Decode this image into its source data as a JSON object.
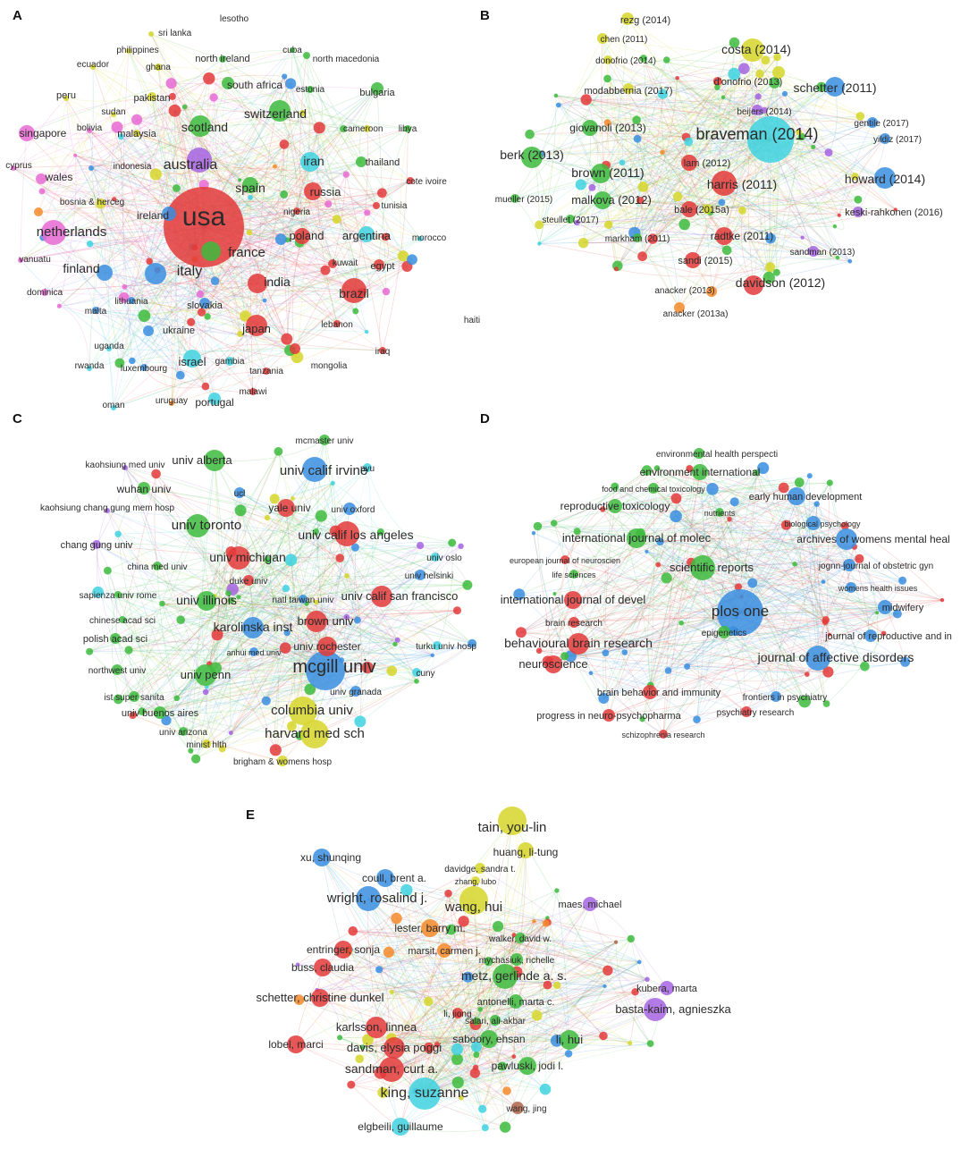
{
  "figure": {
    "panels": [
      {
        "letter": "A",
        "labels": [
          {
            "text": "lesotho",
            "color": "#ffffff"
          },
          {
            "text": "sri lanka",
            "color": "#d6d62a"
          },
          {
            "text": "philippines",
            "color": "#d6d62a"
          },
          {
            "text": "cuba",
            "color": "#3dbb3d"
          },
          {
            "text": "ecuador",
            "color": "#d6d62a"
          },
          {
            "text": "ghana",
            "color": "#d6d62a"
          },
          {
            "text": "north ireland",
            "color": "#3dbb3d"
          },
          {
            "text": "north macedonia",
            "color": "#3dbb3d"
          },
          {
            "text": "peru",
            "color": "#d6d62a"
          },
          {
            "text": "pakistan",
            "color": "#d6d62a"
          },
          {
            "text": "south africa",
            "color": "#3dbb3d"
          },
          {
            "text": "estonia",
            "color": "#3dbb3d"
          },
          {
            "text": "bulgaria",
            "color": "#3dbb3d"
          },
          {
            "text": "sudan",
            "color": "#d6d62a"
          },
          {
            "text": "singapore",
            "color": "#e86ad4"
          },
          {
            "text": "bolivia",
            "color": "#e86ad4"
          },
          {
            "text": "malaysia",
            "color": "#d6d62a"
          },
          {
            "text": "scotland",
            "color": "#3dbb3d"
          },
          {
            "text": "switzerland",
            "color": "#3dbb3d"
          },
          {
            "text": "cameroon",
            "color": "#3dbb3d"
          },
          {
            "text": "libya",
            "color": "#3dbb3d"
          },
          {
            "text": "cyprus",
            "color": "#e86ad4"
          },
          {
            "text": "indonesia",
            "color": "#3a8ee0"
          },
          {
            "text": "australia",
            "color": "#a564e0"
          },
          {
            "text": "iran",
            "color": "#3fd2e0"
          },
          {
            "text": "thailand",
            "color": "#3dbb3d"
          },
          {
            "text": "wales",
            "color": "#e86ad4"
          },
          {
            "text": "cote ivoire",
            "color": "#e33a3a"
          },
          {
            "text": "bosnia & herceg",
            "color": "#f38a2a"
          },
          {
            "text": "spain",
            "color": "#3dbb3d"
          },
          {
            "text": "russia",
            "color": "#e33a3a"
          },
          {
            "text": "usa",
            "color": "#e33a3a"
          },
          {
            "text": "ireland",
            "color": "#3a8ee0"
          },
          {
            "text": "nigeria",
            "color": "#e33a3a"
          },
          {
            "text": "tunisia",
            "color": "#e33a3a"
          },
          {
            "text": "netherlands",
            "color": "#e86ad4"
          },
          {
            "text": "poland",
            "color": "#e33a3a"
          },
          {
            "text": "argentina",
            "color": "#3fd2e0"
          },
          {
            "text": "morocco",
            "color": "#3fd2e0"
          },
          {
            "text": "france",
            "color": "#3dbb3d"
          },
          {
            "text": "vanuatu",
            "color": "#e86ad4"
          },
          {
            "text": "kuwait",
            "color": "#e33a3a"
          },
          {
            "text": "egypt",
            "color": "#e33a3a"
          },
          {
            "text": "finland",
            "color": "#3a8ee0"
          },
          {
            "text": "italy",
            "color": "#3a8ee0"
          },
          {
            "text": "dominica",
            "color": "#e86ad4"
          },
          {
            "text": "india",
            "color": "#e33a3a"
          },
          {
            "text": "brazil",
            "color": "#e33a3a"
          },
          {
            "text": "lithuania",
            "color": "#3a8ee0"
          },
          {
            "text": "malta",
            "color": "#3a8ee0"
          },
          {
            "text": "slovakia",
            "color": "#3a8ee0"
          },
          {
            "text": "haiti",
            "color": "#ffffff"
          },
          {
            "text": "lebanon",
            "color": "#e33a3a"
          },
          {
            "text": "japan",
            "color": "#e33a3a"
          },
          {
            "text": "ukraine",
            "color": "#3a8ee0"
          },
          {
            "text": "uganda",
            "color": "#3fd2e0"
          },
          {
            "text": "iraq",
            "color": "#e33a3a"
          },
          {
            "text": "rwanda",
            "color": "#3fd2e0"
          },
          {
            "text": "luxembourg",
            "color": "#3a8ee0"
          },
          {
            "text": "israel",
            "color": "#3fd2e0"
          },
          {
            "text": "gambia",
            "color": "#3fd2e0"
          },
          {
            "text": "mongolia",
            "color": "#e33a3a"
          },
          {
            "text": "tanzania",
            "color": "#e33a3a"
          },
          {
            "text": "malawi",
            "color": "#e33a3a"
          },
          {
            "text": "oman",
            "color": "#3fd2e0"
          },
          {
            "text": "uruguay",
            "color": "#f38a2a"
          },
          {
            "text": "portugal",
            "color": "#3fd2e0"
          }
        ]
      },
      {
        "letter": "B",
        "labels": [
          {
            "text": "rezg (2014)",
            "color": "#d6d62a"
          },
          {
            "text": "chen (2011)",
            "color": "#d6d62a"
          },
          {
            "text": "donofrio (2014)",
            "color": "#d6d62a"
          },
          {
            "text": "costa (2014)",
            "color": "#d6d62a"
          },
          {
            "text": "d'onofrio (2013)",
            "color": "#d6d62a"
          },
          {
            "text": "modabbernia (2017)",
            "color": "#d6d62a"
          },
          {
            "text": "schetter (2011)",
            "color": "#3a8ee0"
          },
          {
            "text": "beijers (2014)",
            "color": "#a564e0"
          },
          {
            "text": "gentile (2017)",
            "color": "#3a8ee0"
          },
          {
            "text": "giovanoli (2013)",
            "color": "#3dbb3d"
          },
          {
            "text": "braveman (2014)",
            "color": "#3fd2e0"
          },
          {
            "text": "yildiz (2017)",
            "color": "#3a8ee0"
          },
          {
            "text": "berk (2013)",
            "color": "#3dbb3d"
          },
          {
            "text": "lam (2012)",
            "color": "#e33a3a"
          },
          {
            "text": "brown (2011)",
            "color": "#3dbb3d"
          },
          {
            "text": "harris (2011)",
            "color": "#e33a3a"
          },
          {
            "text": "howard (2014)",
            "color": "#3a8ee0"
          },
          {
            "text": "mueller (2015)",
            "color": "#3dbb3d"
          },
          {
            "text": "malkova (2012)",
            "color": "#3dbb3d"
          },
          {
            "text": "bale (2015a)",
            "color": "#e33a3a"
          },
          {
            "text": "keski-rahkonen (2016)",
            "color": "#a564e0"
          },
          {
            "text": "steullet (2017)",
            "color": "#3dbb3d"
          },
          {
            "text": "markham (2011)",
            "color": "#3dbb3d"
          },
          {
            "text": "radtke (2011)",
            "color": "#e33a3a"
          },
          {
            "text": "sandman (2013)",
            "color": "#a564e0"
          },
          {
            "text": "sandi (2015)",
            "color": "#e33a3a"
          },
          {
            "text": "davidson (2012)",
            "color": "#e33a3a"
          },
          {
            "text": "anacker (2013)",
            "color": "#f38a2a"
          },
          {
            "text": "anacker (2013a)",
            "color": "#f38a2a"
          }
        ]
      },
      {
        "letter": "C",
        "labels": [
          {
            "text": "mcmaster univ",
            "color": "#3dbb3d"
          },
          {
            "text": "kaohsiung med univ",
            "color": "#a564e0"
          },
          {
            "text": "univ alberta",
            "color": "#3dbb3d"
          },
          {
            "text": "univ calif irvine",
            "color": "#3a8ee0"
          },
          {
            "text": "nyu",
            "color": "#3fd2e0"
          },
          {
            "text": "wuhan univ",
            "color": "#3dbb3d"
          },
          {
            "text": "ucl",
            "color": "#3a8ee0"
          },
          {
            "text": "kaohsiung chang gung mem hosp",
            "color": "#a564e0"
          },
          {
            "text": "yale univ",
            "color": "#e33a3a"
          },
          {
            "text": "univ oxford",
            "color": "#3a8ee0"
          },
          {
            "text": "univ toronto",
            "color": "#3dbb3d"
          },
          {
            "text": "chang gung univ",
            "color": "#a564e0"
          },
          {
            "text": "univ calif los angeles",
            "color": "#e33a3a"
          },
          {
            "text": "univ michigan",
            "color": "#e33a3a"
          },
          {
            "text": "china med univ",
            "color": "#3dbb3d"
          },
          {
            "text": "univ oslo",
            "color": "#3fd2e0"
          },
          {
            "text": "univ helsinki",
            "color": "#3a8ee0"
          },
          {
            "text": "sapienza univ rome",
            "color": "#3dbb3d"
          },
          {
            "text": "duke univ",
            "color": "#e33a3a"
          },
          {
            "text": "univ calif san francisco",
            "color": "#e33a3a"
          },
          {
            "text": "univ illinois",
            "color": "#3dbb3d"
          },
          {
            "text": "natl taiwan univ",
            "color": "#3a8ee0"
          },
          {
            "text": "chinese acad sci",
            "color": "#3dbb3d"
          },
          {
            "text": "brown univ",
            "color": "#e33a3a"
          },
          {
            "text": "karolinska inst",
            "color": "#3a8ee0"
          },
          {
            "text": "polish acad sci",
            "color": "#3dbb3d"
          },
          {
            "text": "univ rochester",
            "color": "#e33a3a"
          },
          {
            "text": "turku univ hosp",
            "color": "#3fd2e0"
          },
          {
            "text": "anhui med univ",
            "color": "#3a8ee0"
          },
          {
            "text": "northwest univ",
            "color": "#3dbb3d"
          },
          {
            "text": "mcgill univ",
            "color": "#3a8ee0"
          },
          {
            "text": "univ penn",
            "color": "#3dbb3d"
          },
          {
            "text": "cuny",
            "color": "#3fd2e0"
          },
          {
            "text": "ist super sanita",
            "color": "#3dbb3d"
          },
          {
            "text": "univ granada",
            "color": "#3a8ee0"
          },
          {
            "text": "univ buenos aires",
            "color": "#3dbb3d"
          },
          {
            "text": "columbia univ",
            "color": "#d6d62a"
          },
          {
            "text": "univ arizona",
            "color": "#3dbb3d"
          },
          {
            "text": "harvard med sch",
            "color": "#d6d62a"
          },
          {
            "text": "minist hlth",
            "color": "#d6d62a"
          },
          {
            "text": "brigham & womens hosp",
            "color": "#d6d62a"
          }
        ]
      },
      {
        "letter": "D",
        "labels": [
          {
            "text": "environmental health perspecti",
            "color": "#3dbb3d"
          },
          {
            "text": "environment international",
            "color": "#3dbb3d"
          },
          {
            "text": "food and chemical toxicology",
            "color": "#3dbb3d"
          },
          {
            "text": "early human development",
            "color": "#3a8ee0"
          },
          {
            "text": "reproductive toxicology",
            "color": "#3dbb3d"
          },
          {
            "text": "nutrients",
            "color": "#3dbb3d"
          },
          {
            "text": "biological psychology",
            "color": "#3a8ee0"
          },
          {
            "text": "international journal of molec",
            "color": "#3dbb3d"
          },
          {
            "text": "archives of womens mental heal",
            "color": "#3a8ee0"
          },
          {
            "text": "european journal of neuroscien",
            "color": "#e33a3a"
          },
          {
            "text": "jognn-journal of obstetric gyn",
            "color": "#3a8ee0"
          },
          {
            "text": "scientific reports",
            "color": "#3dbb3d"
          },
          {
            "text": "life sciences",
            "color": "#3dbb3d"
          },
          {
            "text": "womens health issues",
            "color": "#3a8ee0"
          },
          {
            "text": "international journal of devel",
            "color": "#e33a3a"
          },
          {
            "text": "plos one",
            "color": "#3a8ee0"
          },
          {
            "text": "midwifery",
            "color": "#3a8ee0"
          },
          {
            "text": "brain research",
            "color": "#e33a3a"
          },
          {
            "text": "epigenetics",
            "color": "#3dbb3d"
          },
          {
            "text": "journal of reproductive and in",
            "color": "#3a8ee0"
          },
          {
            "text": "behavioural brain research",
            "color": "#e33a3a"
          },
          {
            "text": "journal of affective disorders",
            "color": "#3a8ee0"
          },
          {
            "text": "neuroscience",
            "color": "#e33a3a"
          },
          {
            "text": "brain behavior and immunity",
            "color": "#e33a3a"
          },
          {
            "text": "frontiers in psychiatry",
            "color": "#3a8ee0"
          },
          {
            "text": "psychiatry research",
            "color": "#e33a3a"
          },
          {
            "text": "progress in neuro-psychopharma",
            "color": "#e33a3a"
          },
          {
            "text": "schizophrenia research",
            "color": "#e33a3a"
          }
        ]
      },
      {
        "letter": "E",
        "labels": [
          {
            "text": "tain, you-lin",
            "color": "#d6d62a"
          },
          {
            "text": "huang, li-tung",
            "color": "#d6d62a"
          },
          {
            "text": "xu, shunqing",
            "color": "#3a8ee0"
          },
          {
            "text": "davidge, sandra t.",
            "color": "#d6d62a"
          },
          {
            "text": "coull, brent a.",
            "color": "#3a8ee0"
          },
          {
            "text": "zhang, lubo",
            "color": "#d6d62a"
          },
          {
            "text": "wright, rosalind j.",
            "color": "#3a8ee0"
          },
          {
            "text": "wang, hui",
            "color": "#d6d62a"
          },
          {
            "text": "maes, michael",
            "color": "#a564e0"
          },
          {
            "text": "lester, barry m.",
            "color": "#f38a2a"
          },
          {
            "text": "walker, david w.",
            "color": "#3dbb3d"
          },
          {
            "text": "entringer, sonja",
            "color": "#e33a3a"
          },
          {
            "text": "marsit, carmen j.",
            "color": "#f38a2a"
          },
          {
            "text": "mychasiuk, richelle",
            "color": "#3dbb3d"
          },
          {
            "text": "buss, claudia",
            "color": "#e33a3a"
          },
          {
            "text": "metz, gerlinde a. s.",
            "color": "#3dbb3d"
          },
          {
            "text": "schetter, christine dunkel",
            "color": "#e33a3a"
          },
          {
            "text": "kubera, marta",
            "color": "#a564e0"
          },
          {
            "text": "antonelli, marta c.",
            "color": "#3dbb3d"
          },
          {
            "text": "li, jiong",
            "color": "#e33a3a"
          },
          {
            "text": "basta-kaim, agnieszka",
            "color": "#a564e0"
          },
          {
            "text": "karlsson, linnea",
            "color": "#e33a3a"
          },
          {
            "text": "salari, ali-akbar",
            "color": "#3dbb3d"
          },
          {
            "text": "lobel, marci",
            "color": "#e33a3a"
          },
          {
            "text": "davis, elysia poggi",
            "color": "#e33a3a"
          },
          {
            "text": "saboory, ehsan",
            "color": "#3dbb3d"
          },
          {
            "text": "li, hui",
            "color": "#3dbb3d"
          },
          {
            "text": "sandman, curt a.",
            "color": "#e33a3a"
          },
          {
            "text": "pawluski, jodi l.",
            "color": "#3dbb3d"
          },
          {
            "text": "king, suzanne",
            "color": "#3fd2e0"
          },
          {
            "text": "wang, jing",
            "color": "#b0644a"
          },
          {
            "text": "elgbeili, guillaume",
            "color": "#3fd2e0"
          }
        ]
      }
    ]
  }
}
